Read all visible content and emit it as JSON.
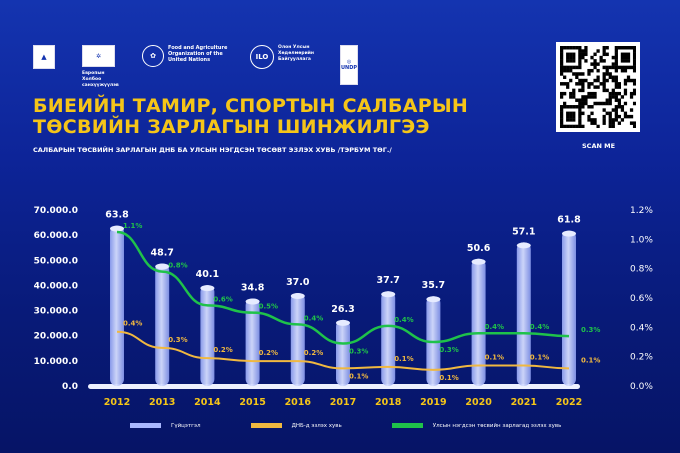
{
  "header": {
    "logos": [
      {
        "name": "mongolia-ministry-logo",
        "text": ""
      },
      {
        "name": "eu-logo",
        "text": "Европын Холбоо санхүүжүүлэв"
      },
      {
        "name": "fao-logo",
        "text": "Food and Agriculture Organization of the United Nations"
      },
      {
        "name": "ilo-logo",
        "text": "Олон Улсын Хөдөлмөрийн Байгууллага"
      },
      {
        "name": "undp-logo",
        "text": "UNDP"
      }
    ],
    "title_line1": "БИЕИЙН ТАМИР, СПОРТЫН САЛБАРЫН",
    "title_line2": "ТӨСВИЙН ЗАРЛАГЫН ШИНЖИЛГЭЭ",
    "subtitle": "САЛБАРЫН ТӨСВИЙН ЗАРЛАГЫН ДНБ БА УЛСЫН НЭГДСЭН ТӨСӨВТ ЭЗЛЭХ ХУВЬ /ТЭРБУМ ТӨГ./",
    "scan_label": "SCAN ME"
  },
  "colors": {
    "bar": "#a9b8ff",
    "gdp": "#f0b840",
    "budget": "#1fc24a",
    "title": "#f5c518"
  },
  "chart_data": {
    "type": "bar",
    "title": "САЛБАРЫН ТӨСВИЙН ЗАРЛАГЫН ДНБ БА УЛСЫН НЭГДСЭН ТӨСӨВТ ЭЗЛЭХ ХУВЬ /ТЭРБУМ ТӨГ./",
    "categories": [
      "2012",
      "2013",
      "2014",
      "2015",
      "2016",
      "2017",
      "2018",
      "2019",
      "2020",
      "2021",
      "2022"
    ],
    "left_axis": {
      "ylim": [
        0,
        70000
      ],
      "ticks": [
        "0.0",
        "10.000.0",
        "20.000.0",
        "30.000.0",
        "40.000.0",
        "50.000.0",
        "60.000.0",
        "70.000.0"
      ]
    },
    "right_axis": {
      "ylim": [
        0,
        1.2
      ],
      "ticks": [
        "0.0%",
        "0.2%",
        "0.4%",
        "0.6%",
        "0.8%",
        "1.0%",
        "1.2%"
      ]
    },
    "legend_position": "bottom",
    "series": [
      {
        "name": "Гүйцэтгэл",
        "type": "bar",
        "axis": "left",
        "values": [
          63800,
          48700,
          40100,
          34800,
          37000,
          26300,
          37700,
          35700,
          50600,
          57100,
          61800
        ],
        "labels": [
          "63.8",
          "48.7",
          "40.1",
          "34.8",
          "37.0",
          "26.3",
          "37.7",
          "35.7",
          "50.6",
          "57.1",
          "61.8"
        ]
      },
      {
        "name": "ДНБ-д эзлэх хувь",
        "type": "line",
        "axis": "right",
        "values": [
          0.37,
          0.26,
          0.19,
          0.17,
          0.17,
          0.12,
          0.13,
          0.11,
          0.14,
          0.14,
          0.12
        ],
        "labels": [
          "0.4%",
          "0.3%",
          "0.2%",
          "0.2%",
          "0.2%",
          "0.1%",
          "0.1%",
          "0.1%",
          "0.1%",
          "0.1%",
          "0.1%"
        ]
      },
      {
        "name": "Улсын нэгдсэн төсвийн зарлагад эзлэх хувь",
        "type": "line",
        "axis": "right",
        "values": [
          1.05,
          0.78,
          0.55,
          0.5,
          0.42,
          0.29,
          0.41,
          0.3,
          0.36,
          0.36,
          0.34
        ],
        "labels": [
          "1.1%",
          "0.8%",
          "0.6%",
          "0.5%",
          "0.4%",
          "0.3%",
          "0.4%",
          "0.3%",
          "0.4%",
          "0.4%",
          "0.3%"
        ]
      }
    ]
  }
}
